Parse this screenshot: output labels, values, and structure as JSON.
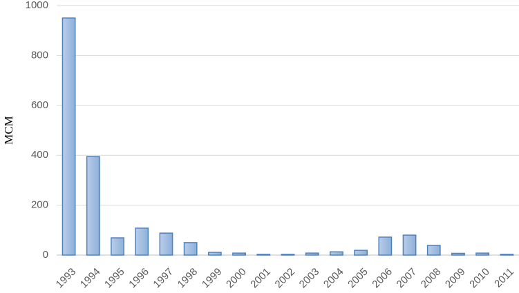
{
  "chart_data": {
    "type": "bar",
    "y_label": "MCM",
    "categories": [
      "1993",
      "1994",
      "1995",
      "1996",
      "1997",
      "1998",
      "1999",
      "2000",
      "2001",
      "2002",
      "2003",
      "2004",
      "2005",
      "2006",
      "2007",
      "2008",
      "2009",
      "2010",
      "2011"
    ],
    "values": [
      950,
      395,
      69,
      108,
      88,
      50,
      11,
      8,
      3,
      3,
      8,
      13,
      19,
      72,
      80,
      39,
      7,
      8,
      3
    ],
    "color": "#4f81bd",
    "ylim": [
      0,
      1000
    ],
    "yticks": [
      0,
      200,
      400,
      600,
      800,
      1000
    ],
    "grid": true
  }
}
